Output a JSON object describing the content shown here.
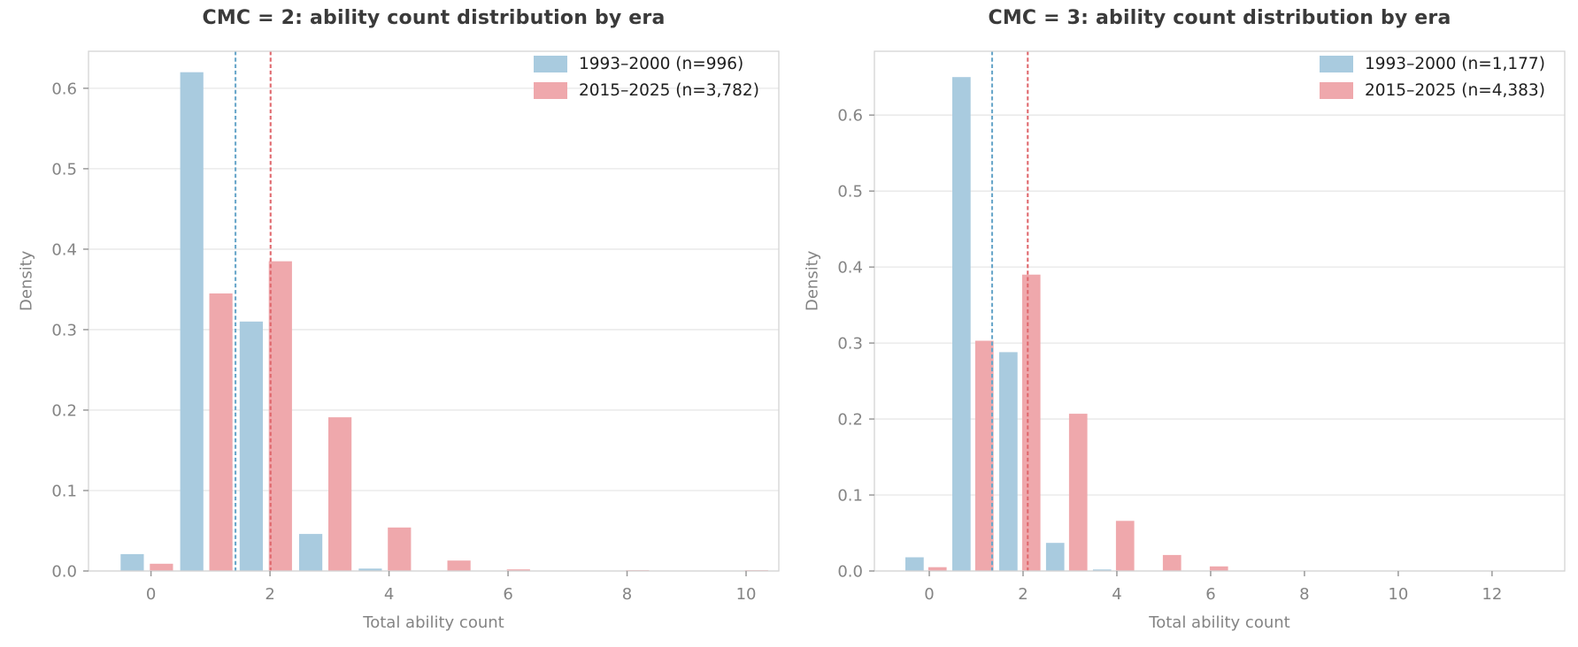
{
  "page": {
    "background_color": "#ffffff",
    "grid_color": "#e7e7e7",
    "border_color": "#d4d4d4",
    "tick_color": "#9a9a9a",
    "tick_label_color": "#848484",
    "title_color": "#3a3a3a",
    "legend_text_color": "#1f1f1f"
  },
  "chart_data": [
    {
      "type": "bar",
      "subtype": "dodged-density-histogram",
      "title": "CMC = 2: ability count distribution by era",
      "xlabel": "Total ability count",
      "ylabel": "Density",
      "bins": [
        0,
        1,
        2,
        3,
        4,
        5,
        6,
        7,
        8,
        9,
        10
      ],
      "series": [
        {
          "name": "1993–2000 (n=996)",
          "color": "#a9cbdf",
          "values": [
            0.021,
            0.62,
            0.31,
            0.046,
            0.003,
            0,
            0,
            0,
            0,
            0,
            0
          ],
          "mean": 1.42,
          "mean_line_color": "#6aa7ca"
        },
        {
          "name": "2015–2025 (n=3,782)",
          "color": "#efa8ac",
          "values": [
            0.009,
            0.345,
            0.385,
            0.191,
            0.054,
            0.013,
            0.002,
            0,
            0.001,
            0,
            0.001
          ],
          "mean": 2.01,
          "mean_line_color": "#e0696e"
        }
      ],
      "xlim": [
        -1.05,
        10.55
      ],
      "ylim": [
        0,
        0.646
      ],
      "xticks": [
        0,
        2,
        4,
        6,
        8,
        10
      ],
      "yticks": [
        0.0,
        0.1,
        0.2,
        0.3,
        0.4,
        0.5,
        0.6
      ],
      "grid": "horizontal",
      "legend_position": "upper right"
    },
    {
      "type": "bar",
      "subtype": "dodged-density-histogram",
      "title": "CMC = 3: ability count distribution by era",
      "xlabel": "Total ability count",
      "ylabel": "Density",
      "bins": [
        0,
        1,
        2,
        3,
        4,
        5,
        6,
        7,
        8,
        9,
        10,
        11,
        12
      ],
      "series": [
        {
          "name": "1993–2000 (n=1,177)",
          "color": "#a9cbdf",
          "values": [
            0.018,
            0.65,
            0.288,
            0.037,
            0.002,
            0,
            0,
            0,
            0,
            0,
            0,
            0,
            0
          ],
          "mean": 1.34,
          "mean_line_color": "#6aa7ca"
        },
        {
          "name": "2015–2025 (n=4,383)",
          "color": "#efa8ac",
          "values": [
            0.005,
            0.303,
            0.39,
            0.207,
            0.066,
            0.021,
            0.006,
            0,
            0,
            0,
            0,
            0,
            0
          ],
          "mean": 2.1,
          "mean_line_color": "#e0696e"
        }
      ],
      "xlim": [
        -1.17,
        13.55
      ],
      "ylim": [
        0,
        0.684
      ],
      "xticks": [
        0,
        2,
        4,
        6,
        8,
        10,
        12
      ],
      "yticks": [
        0.0,
        0.1,
        0.2,
        0.3,
        0.4,
        0.5,
        0.6
      ],
      "grid": "horizontal",
      "legend_position": "upper right"
    }
  ]
}
